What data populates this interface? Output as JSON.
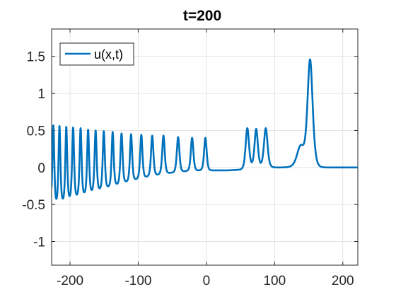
{
  "chart_data": {
    "type": "line",
    "title": "t=200",
    "xlabel": "",
    "ylabel": "",
    "xlim": [
      -227,
      222
    ],
    "ylim": [
      -1.32,
      1.87
    ],
    "x_ticks": [
      -200,
      -100,
      0,
      100,
      200
    ],
    "y_ticks": [
      -1,
      -0.5,
      0,
      0.5,
      1,
      1.5
    ],
    "grid": true,
    "legend": {
      "placement": "top-left",
      "entries": [
        "u(x,t)"
      ]
    },
    "series": [
      {
        "name": "u(x,t)",
        "color": "#0072bd",
        "baseline": [
          [
            -227,
            -0.5
          ],
          [
            -210,
            -0.45
          ],
          [
            -180,
            -0.36
          ],
          [
            -150,
            -0.28
          ],
          [
            -120,
            -0.2
          ],
          [
            -90,
            -0.13
          ],
          [
            -60,
            -0.08
          ],
          [
            -30,
            -0.05
          ],
          [
            -2,
            -0.035
          ],
          [
            2,
            -0.04
          ],
          [
            30,
            -0.04
          ],
          [
            50,
            -0.03
          ],
          [
            56,
            -0.02
          ]
        ],
        "oscillation_peaks": [
          {
            "x": -224.5,
            "y": 0.57,
            "w": 1.8
          },
          {
            "x": -215.5,
            "y": 0.56,
            "w": 1.8
          },
          {
            "x": -205.5,
            "y": 0.55,
            "w": 1.8
          },
          {
            "x": -195.5,
            "y": 0.54,
            "w": 1.9
          },
          {
            "x": -184.5,
            "y": 0.53,
            "w": 1.9
          },
          {
            "x": -173.5,
            "y": 0.51,
            "w": 1.9
          },
          {
            "x": -162.5,
            "y": 0.5,
            "w": 2.0
          },
          {
            "x": -150.5,
            "y": 0.49,
            "w": 2.0
          },
          {
            "x": -137.5,
            "y": 0.48,
            "w": 2.0
          },
          {
            "x": -124.5,
            "y": 0.46,
            "w": 2.1
          },
          {
            "x": -110.5,
            "y": 0.45,
            "w": 2.1
          },
          {
            "x": -95.5,
            "y": 0.44,
            "w": 2.2
          },
          {
            "x": -79.5,
            "y": 0.43,
            "w": 2.3
          },
          {
            "x": -63,
            "y": 0.43,
            "w": 2.4
          },
          {
            "x": -41.5,
            "y": 0.41,
            "w": 2.5
          },
          {
            "x": -21,
            "y": 0.4,
            "w": 2.5
          },
          {
            "x": -1.5,
            "y": 0.4,
            "w": 2.5
          }
        ],
        "solitons": [
          {
            "x": 60,
            "y": 0.53,
            "w": 3.2
          },
          {
            "x": 73,
            "y": 0.52,
            "w": 3.2
          },
          {
            "x": 87,
            "y": 0.53,
            "w": 3.5
          },
          {
            "x": 152,
            "y": 1.44,
            "w": 5.0
          }
        ],
        "shoulder": {
          "x": 138,
          "y": 0.28,
          "w": 7.0
        }
      }
    ]
  }
}
